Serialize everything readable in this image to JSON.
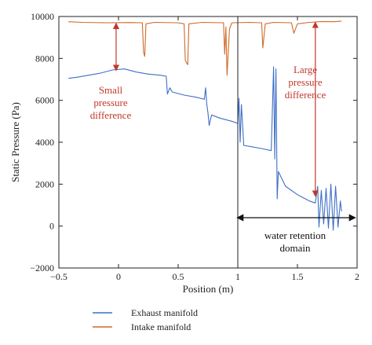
{
  "chart_data": {
    "type": "line",
    "xlabel": "Position (m)",
    "ylabel": "Static Pressure (Pa)",
    "xlim": [
      -0.5,
      2
    ],
    "ylim": [
      -2000,
      10000
    ],
    "x_ticks": [
      "−0.5",
      "0",
      "0.5",
      "1",
      "1.5",
      "2"
    ],
    "y_ticks": [
      "−2000",
      "0",
      "2000",
      "4000",
      "6000",
      "8000",
      "10000"
    ],
    "grid": false,
    "legend_position": "below",
    "series": [
      {
        "name": "Exhaust manifold",
        "color": "#3f6fc6",
        "points": [
          [
            -0.42,
            7050
          ],
          [
            -0.35,
            7100
          ],
          [
            -0.25,
            7200
          ],
          [
            -0.15,
            7300
          ],
          [
            -0.05,
            7450
          ],
          [
            0.05,
            7500
          ],
          [
            0.15,
            7350
          ],
          [
            0.25,
            7250
          ],
          [
            0.35,
            7200
          ],
          [
            0.4,
            7150
          ],
          [
            0.41,
            6300
          ],
          [
            0.43,
            6600
          ],
          [
            0.45,
            6400
          ],
          [
            0.55,
            6250
          ],
          [
            0.65,
            6150
          ],
          [
            0.72,
            6050
          ],
          [
            0.73,
            6600
          ],
          [
            0.74,
            5800
          ],
          [
            0.75,
            5400
          ],
          [
            0.76,
            4800
          ],
          [
            0.78,
            5300
          ],
          [
            0.85,
            5150
          ],
          [
            0.95,
            5000
          ],
          [
            1.0,
            4900
          ],
          [
            1.01,
            6100
          ],
          [
            1.02,
            4000
          ],
          [
            1.03,
            5800
          ],
          [
            1.05,
            3850
          ],
          [
            1.1,
            3800
          ],
          [
            1.2,
            3700
          ],
          [
            1.28,
            3600
          ],
          [
            1.3,
            7600
          ],
          [
            1.31,
            3200
          ],
          [
            1.32,
            7500
          ],
          [
            1.33,
            1300
          ],
          [
            1.34,
            2600
          ],
          [
            1.4,
            1900
          ],
          [
            1.5,
            1500
          ],
          [
            1.6,
            1200
          ],
          [
            1.65,
            1100
          ],
          [
            1.67,
            1900
          ],
          [
            1.68,
            -50
          ],
          [
            1.7,
            1700
          ],
          [
            1.72,
            100
          ],
          [
            1.74,
            1800
          ],
          [
            1.76,
            -100
          ],
          [
            1.78,
            2000
          ],
          [
            1.8,
            -200
          ],
          [
            1.82,
            1900
          ],
          [
            1.84,
            -50
          ],
          [
            1.86,
            1200
          ],
          [
            1.87,
            700
          ]
        ]
      },
      {
        "name": "Intake manifold",
        "color": "#d06a2a",
        "points": [
          [
            -0.42,
            9750
          ],
          [
            -0.3,
            9720
          ],
          [
            -0.1,
            9700
          ],
          [
            0.1,
            9710
          ],
          [
            0.2,
            9700
          ],
          [
            0.21,
            8300
          ],
          [
            0.22,
            8100
          ],
          [
            0.23,
            9650
          ],
          [
            0.3,
            9720
          ],
          [
            0.5,
            9700
          ],
          [
            0.55,
            9650
          ],
          [
            0.56,
            7900
          ],
          [
            0.58,
            7700
          ],
          [
            0.59,
            9650
          ],
          [
            0.7,
            9720
          ],
          [
            0.88,
            9700
          ],
          [
            0.89,
            8200
          ],
          [
            0.9,
            9500
          ],
          [
            0.91,
            7200
          ],
          [
            0.93,
            9400
          ],
          [
            0.95,
            9700
          ],
          [
            1.1,
            9720
          ],
          [
            1.2,
            9700
          ],
          [
            1.21,
            8500
          ],
          [
            1.23,
            9650
          ],
          [
            1.3,
            9720
          ],
          [
            1.45,
            9700
          ],
          [
            1.47,
            9200
          ],
          [
            1.5,
            9650
          ],
          [
            1.6,
            9720
          ],
          [
            1.7,
            9760
          ],
          [
            1.8,
            9750
          ],
          [
            1.87,
            9780
          ]
        ]
      }
    ],
    "annotations": {
      "small_diff": [
        "Small",
        "pressure",
        "difference"
      ],
      "large_diff": [
        "Large",
        "pressure",
        "difference"
      ],
      "domain": [
        "water retention",
        "domain"
      ]
    },
    "markers": {
      "small_arrow": {
        "x": -0.02,
        "y1": 9650,
        "y2": 7450
      },
      "large_arrow": {
        "x": 1.65,
        "y1": 9700,
        "y2": 1450
      },
      "domain_line_x": 1.0,
      "domain_arrow": {
        "x1": 1.0,
        "x2": 1.98,
        "y": 400
      }
    }
  }
}
